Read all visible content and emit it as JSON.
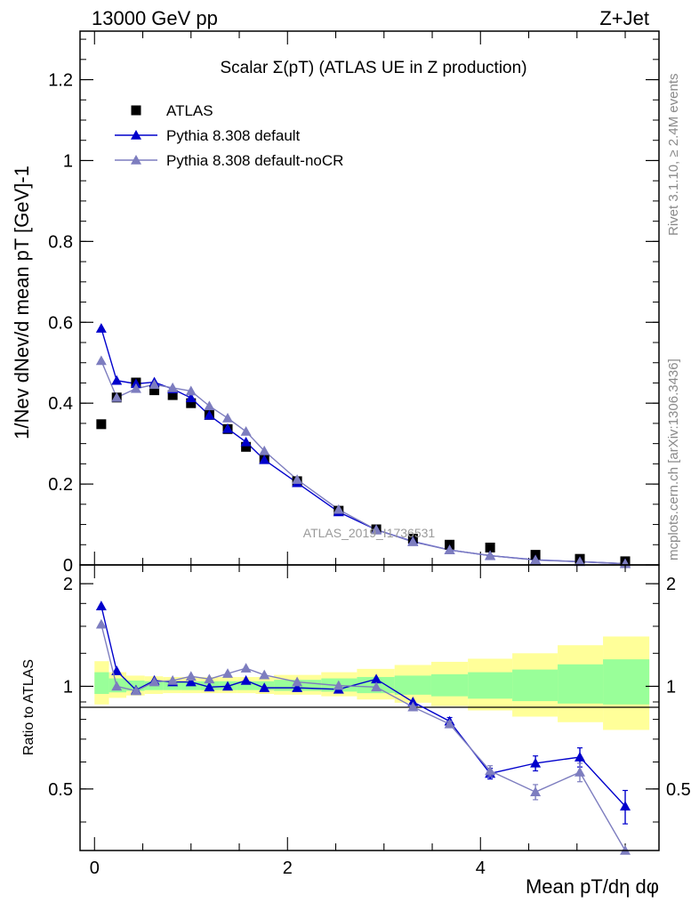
{
  "header": {
    "left": "13000 GeV pp",
    "right": "Z+Jet"
  },
  "side_text": {
    "rivet": "Rivet 3.1.10, ≥ 2.4M events",
    "mcplots": "mcplots.cern.ch [arXiv:1306.3436]"
  },
  "watermark": "ATLAS_2019_I1736531",
  "chart_data": [
    {
      "type": "scatter",
      "title": "Scalar Σ(pT) (ATLAS UE in Z production)",
      "ylabel": "1/Nev dNev/d mean pT [GeV]-1",
      "xlim": [
        -0.15,
        5.85
      ],
      "ylim": [
        0,
        1.32
      ],
      "yticks": [
        "0",
        "0.2",
        "0.4",
        "0.6",
        "0.8",
        "1",
        "1.2"
      ],
      "legend_position": "top-left",
      "series": [
        {
          "name": "ATLAS",
          "color": "#000000",
          "marker": "square",
          "x": [
            0.07,
            0.23,
            0.43,
            0.62,
            0.81,
            1.0,
            1.19,
            1.38,
            1.57,
            1.76,
            2.1,
            2.53,
            2.92,
            3.3,
            3.68,
            4.1,
            4.57,
            5.03,
            5.5
          ],
          "y": [
            0.348,
            0.414,
            0.451,
            0.432,
            0.42,
            0.4,
            0.371,
            0.336,
            0.292,
            0.262,
            0.207,
            0.134,
            0.088,
            0.065,
            0.05,
            0.043,
            0.025,
            0.015,
            0.009
          ]
        },
        {
          "name": "Pythia 8.308 default",
          "color": "#0000cc",
          "marker": "triangle",
          "x": [
            0.07,
            0.23,
            0.43,
            0.62,
            0.81,
            1.0,
            1.19,
            1.38,
            1.57,
            1.76,
            2.1,
            2.53,
            2.92,
            3.3,
            3.68,
            4.1,
            4.57,
            5.03,
            5.5
          ],
          "y": [
            0.585,
            0.456,
            0.448,
            0.452,
            0.435,
            0.413,
            0.37,
            0.337,
            0.304,
            0.26,
            0.203,
            0.131,
            0.087,
            0.058,
            0.037,
            0.023,
            0.0125,
            0.008,
            0.003
          ]
        },
        {
          "name": "Pythia 8.308 default-noCR",
          "color": "#7d7dbf",
          "marker": "triangle",
          "x": [
            0.07,
            0.23,
            0.43,
            0.62,
            0.81,
            1.0,
            1.19,
            1.38,
            1.57,
            1.76,
            2.1,
            2.53,
            2.92,
            3.3,
            3.68,
            4.1,
            4.57,
            5.03,
            5.5
          ],
          "y": [
            0.505,
            0.414,
            0.436,
            0.446,
            0.438,
            0.43,
            0.393,
            0.363,
            0.33,
            0.282,
            0.211,
            0.137,
            0.087,
            0.057,
            0.037,
            0.023,
            0.012,
            0.008,
            0.003
          ]
        }
      ]
    },
    {
      "type": "line",
      "ylabel": "Ratio to ATLAS",
      "xlabel": "Mean pT/dη dφ",
      "xlim": [
        -0.15,
        5.85
      ],
      "ylim": [
        0.33,
        2.27
      ],
      "xticks": [
        "0",
        "2",
        "4"
      ],
      "yticks": [
        "0.5",
        "1",
        "2"
      ],
      "log_y": true,
      "bands": {
        "edges": [
          0.0,
          0.15,
          0.33,
          0.52,
          0.71,
          0.9,
          1.1,
          1.29,
          1.48,
          1.67,
          1.86,
          2.35,
          2.72,
          3.11,
          3.49,
          3.87,
          4.33,
          4.8,
          5.27,
          5.75
        ],
        "inner_color": "#99ff99",
        "outer_color": "#ffff99",
        "inner_lo": [
          0.95,
          0.96,
          0.97,
          0.975,
          0.975,
          0.975,
          0.975,
          0.975,
          0.975,
          0.975,
          0.97,
          0.965,
          0.955,
          0.945,
          0.935,
          0.92,
          0.905,
          0.89,
          0.885
        ],
        "inner_hi": [
          1.1,
          1.055,
          1.04,
          1.035,
          1.035,
          1.035,
          1.035,
          1.035,
          1.035,
          1.035,
          1.045,
          1.055,
          1.065,
          1.075,
          1.085,
          1.1,
          1.12,
          1.16,
          1.2
        ],
        "outer_lo": [
          0.885,
          0.925,
          0.94,
          0.95,
          0.955,
          0.955,
          0.955,
          0.955,
          0.955,
          0.95,
          0.945,
          0.935,
          0.915,
          0.895,
          0.875,
          0.85,
          0.815,
          0.785,
          0.745
        ],
        "outer_hi": [
          1.185,
          1.1,
          1.075,
          1.07,
          1.065,
          1.065,
          1.065,
          1.065,
          1.065,
          1.065,
          1.08,
          1.1,
          1.125,
          1.155,
          1.18,
          1.205,
          1.25,
          1.32,
          1.4
        ]
      },
      "series": [
        {
          "name": "Pythia 8.308 default",
          "color": "#0000cc",
          "marker": "triangle",
          "x": [
            0.07,
            0.23,
            0.43,
            0.62,
            0.81,
            1.0,
            1.19,
            1.38,
            1.57,
            1.76,
            2.1,
            2.53,
            2.92,
            3.3,
            3.68,
            4.1,
            4.57,
            5.03,
            5.5
          ],
          "y": [
            1.72,
            1.11,
            0.975,
            1.04,
            1.03,
            1.03,
            0.995,
            1.0,
            1.04,
            0.99,
            0.99,
            0.98,
            1.05,
            0.9,
            0.79,
            0.555,
            0.595,
            0.62,
            0.445
          ],
          "err": [
            0,
            0,
            0,
            0,
            0,
            0,
            0,
            0,
            0,
            0,
            0,
            0,
            0,
            0,
            0.02,
            0.02,
            0.03,
            0.04,
            0.05
          ]
        },
        {
          "name": "Pythia 8.308 default-noCR",
          "color": "#7d7dbf",
          "marker": "triangle",
          "x": [
            0.07,
            0.23,
            0.43,
            0.62,
            0.81,
            1.0,
            1.19,
            1.38,
            1.57,
            1.76,
            2.1,
            2.53,
            2.92,
            3.3,
            3.68,
            4.1,
            4.57,
            5.03,
            5.5
          ],
          "y": [
            1.52,
            1.0,
            0.97,
            1.03,
            1.04,
            1.07,
            1.05,
            1.09,
            1.13,
            1.08,
            1.03,
            1.005,
            0.995,
            0.87,
            0.775,
            0.565,
            0.49,
            0.56,
            0.33
          ],
          "err": [
            0,
            0,
            0,
            0,
            0,
            0,
            0,
            0,
            0,
            0,
            0,
            0,
            0,
            0,
            0.015,
            0.02,
            0.025,
            0.035,
            0
          ]
        }
      ]
    }
  ]
}
